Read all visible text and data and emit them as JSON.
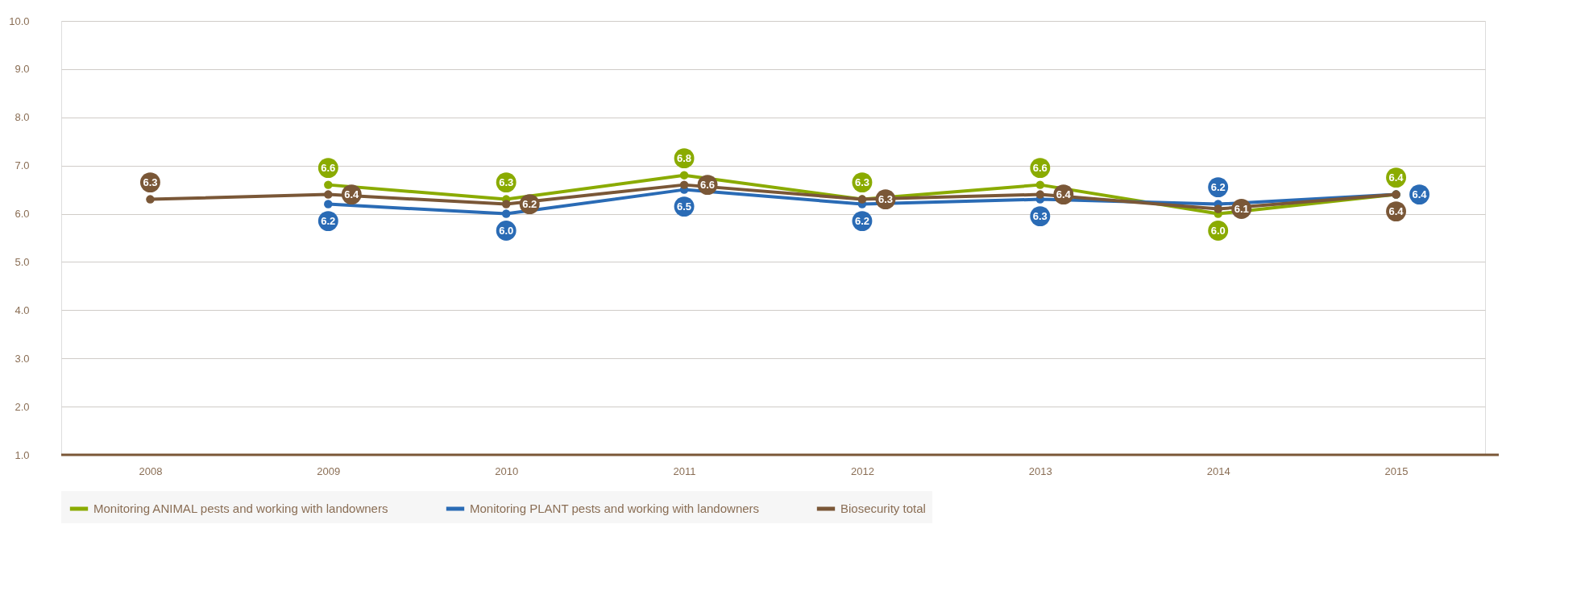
{
  "chart_data": {
    "type": "line",
    "categories": [
      "2008",
      "2009",
      "2010",
      "2011",
      "2012",
      "2013",
      "2014",
      "2015"
    ],
    "series": [
      {
        "name": "Monitoring ANIMAL pests and working with landowners",
        "color": "#8aab00",
        "values": [
          null,
          6.6,
          6.3,
          6.8,
          6.3,
          6.6,
          6.0,
          6.4
        ],
        "value_labels": [
          null,
          "6.6",
          "6.3",
          "6.8",
          "6.3",
          "6.6",
          "6.0",
          "6.4"
        ]
      },
      {
        "name": "Monitoring PLANT pests and working with landowners",
        "color": "#2a6bb5",
        "values": [
          null,
          6.2,
          6.0,
          6.5,
          6.2,
          6.3,
          6.2,
          6.4
        ],
        "value_labels": [
          null,
          "6.2",
          "6.0",
          "6.5",
          "6.2",
          "6.3",
          "6.2",
          "6.4"
        ]
      },
      {
        "name": "Biosecurity total",
        "color": "#7a5737",
        "values": [
          6.3,
          6.4,
          6.2,
          6.6,
          6.3,
          6.4,
          6.1,
          6.4
        ],
        "value_labels": [
          "6.3",
          "6.4",
          "6.2",
          "6.6",
          "6.3",
          "6.4",
          "6.1",
          "6.4"
        ]
      }
    ],
    "ylim": [
      1,
      10
    ],
    "yticks": [
      {
        "value": 1,
        "label": "1.0"
      },
      {
        "value": 2,
        "label": "2.0"
      },
      {
        "value": 3,
        "label": "3.0"
      },
      {
        "value": 4,
        "label": "4.0"
      },
      {
        "value": 5,
        "label": "5.0"
      },
      {
        "value": 6,
        "label": "6.0"
      },
      {
        "value": 7,
        "label": "7.0"
      },
      {
        "value": 8,
        "label": "8.0"
      },
      {
        "value": 9,
        "label": "9.0"
      },
      {
        "value": 10,
        "label": "10.0"
      }
    ],
    "grid": "y",
    "legend": "bottom",
    "marker": "circle",
    "line_style": "solid"
  }
}
